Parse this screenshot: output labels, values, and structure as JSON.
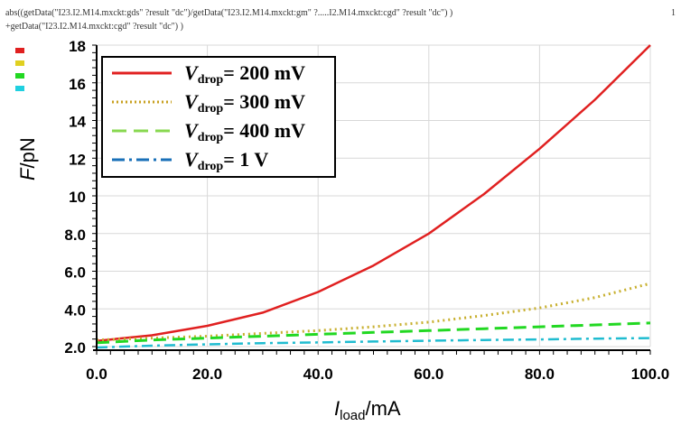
{
  "expression": {
    "line1": "abs((getData(\"I23.I2.M14.mxckt:gds\" ?result \"dc\")/getData(\"I23.I2.M14.mxckt:gm\" ?.....I2.M14.mxckt:cgd\" ?result \"dc\") )",
    "line2": "+getData(\"I23.I2.M14.mxckt:cgd\" ?result \"dc\") )"
  },
  "page_number": "1",
  "colors": {
    "red": "#e02020",
    "yellow": "#c8b830",
    "green": "#22d822",
    "cyan": "#20bcd0",
    "grid": "#d8d8d8"
  },
  "chart_data": {
    "type": "line",
    "xlabel_var": "I",
    "xlabel_sub": "load",
    "xlabel_unit": "/mA",
    "ylabel_var": "F",
    "ylabel_unit": "/pN",
    "xlim": [
      0,
      100
    ],
    "ylim": [
      2,
      18
    ],
    "x_ticks": [
      "0.0",
      "20.0",
      "40.0",
      "60.0",
      "80.0",
      "100.0"
    ],
    "y_ticks": [
      "2.0",
      "4.0",
      "6.0",
      "8.0",
      "10",
      "12",
      "14",
      "16",
      "18"
    ],
    "grid": true,
    "legend_position": "top-left",
    "x": [
      0,
      10,
      20,
      30,
      40,
      50,
      60,
      70,
      80,
      90,
      100
    ],
    "series": [
      {
        "name": "200 mV",
        "values": [
          2.3,
          2.6,
          3.1,
          3.8,
          4.9,
          6.3,
          8.0,
          10.1,
          12.5,
          15.1,
          18.0
        ]
      },
      {
        "name": "300 mV",
        "values": [
          2.35,
          2.45,
          2.55,
          2.7,
          2.85,
          3.05,
          3.3,
          3.65,
          4.05,
          4.6,
          5.35
        ]
      },
      {
        "name": "400 mV",
        "values": [
          2.2,
          2.35,
          2.45,
          2.55,
          2.65,
          2.75,
          2.85,
          2.95,
          3.05,
          3.15,
          3.25
        ]
      },
      {
        "name": "1  V",
        "values": [
          1.95,
          2.05,
          2.12,
          2.18,
          2.22,
          2.27,
          2.31,
          2.35,
          2.38,
          2.42,
          2.45
        ]
      }
    ],
    "legend_var": "V",
    "legend_sub": "drop",
    "legend_eq": "= "
  }
}
